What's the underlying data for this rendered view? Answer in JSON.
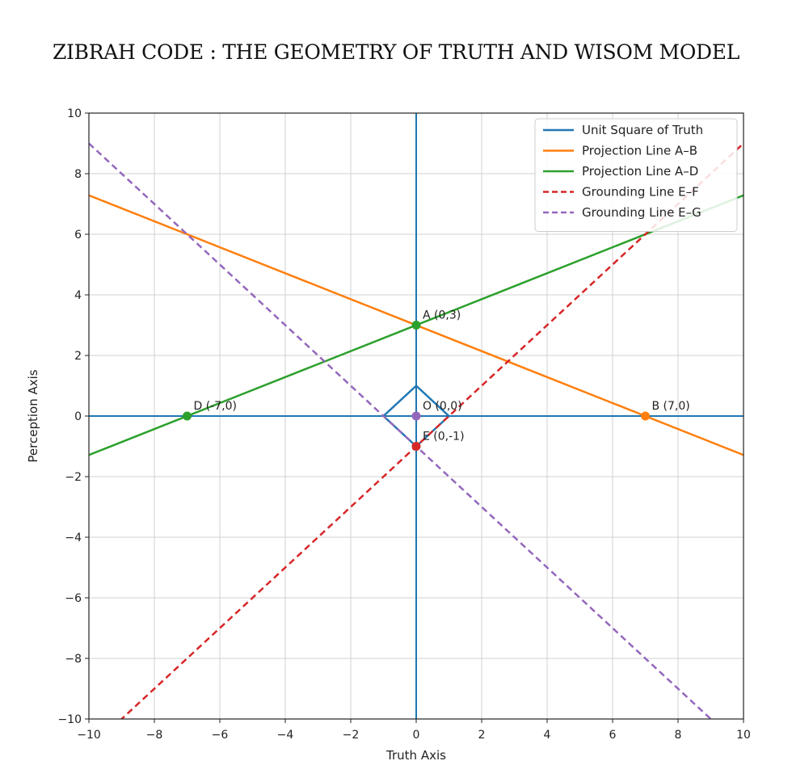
{
  "page_title": "ZIBRAH CODE : THE GEOMETRY OF TRUTH AND WISOM MODEL",
  "chart_data": {
    "type": "line",
    "xlabel": "Truth Axis",
    "ylabel": "Perception Axis",
    "xlim": [
      -10,
      10
    ],
    "ylim": [
      -10,
      10
    ],
    "xticks": [
      -10,
      -8,
      -6,
      -4,
      -2,
      0,
      2,
      4,
      6,
      8,
      10
    ],
    "yticks": [
      -10,
      -8,
      -6,
      -4,
      -2,
      0,
      2,
      4,
      6,
      8,
      10
    ],
    "x_tick_labels": [
      "−10",
      "−8",
      "−6",
      "−4",
      "−2",
      "0",
      "2",
      "4",
      "6",
      "8",
      "10"
    ],
    "y_tick_labels": [
      "−10",
      "−8",
      "−6",
      "−4",
      "−2",
      "0",
      "2",
      "4",
      "6",
      "8",
      "10"
    ],
    "grid": true,
    "legend_position": "top-right",
    "axis_lines_color": "#1f77b4",
    "series": [
      {
        "name": "Unit Square of Truth",
        "color": "#1f77b4",
        "style": "solid",
        "x": [
          1,
          0,
          -1,
          0,
          1
        ],
        "y": [
          0,
          1,
          0,
          -1,
          0
        ]
      },
      {
        "name": "Projection Line A–B",
        "color": "#ff7f0e",
        "style": "solid",
        "x": [
          -10,
          10
        ],
        "y": [
          7.286,
          -1.286
        ]
      },
      {
        "name": "Projection Line A–D",
        "color": "#2ca02c",
        "style": "solid",
        "x": [
          -10,
          10
        ],
        "y": [
          -1.286,
          7.286
        ]
      },
      {
        "name": "Grounding Line E–F",
        "color": "#d62728",
        "style": "dashed",
        "x": [
          -10,
          10
        ],
        "y": [
          -11,
          9
        ]
      },
      {
        "name": "Grounding Line E–G",
        "color": "#9467bd",
        "style": "dashed",
        "x": [
          -10,
          10
        ],
        "y": [
          9,
          -11
        ]
      }
    ],
    "points": [
      {
        "label": "A (0,3)",
        "x": 0,
        "y": 3,
        "color": "#2ca02c"
      },
      {
        "label": "B (7,0)",
        "x": 7,
        "y": 0,
        "color": "#ff7f0e"
      },
      {
        "label": "D (-7,0)",
        "x": -7,
        "y": 0,
        "color": "#2ca02c"
      },
      {
        "label": "O (0,0)",
        "x": 0,
        "y": 0,
        "color": "#9467bd"
      },
      {
        "label": "E (0,-1)",
        "x": 0,
        "y": -1,
        "color": "#d62728"
      }
    ]
  }
}
